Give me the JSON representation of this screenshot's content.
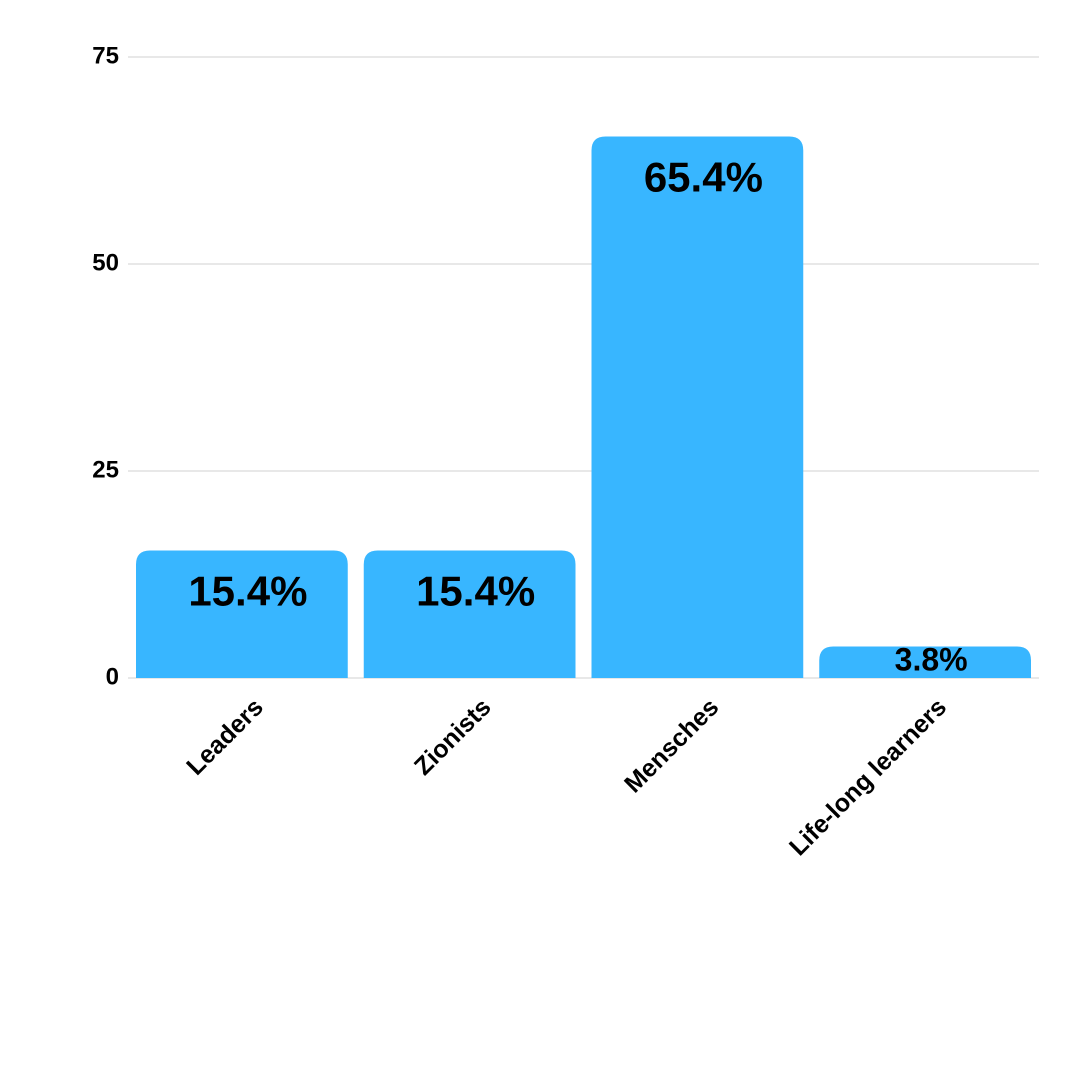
{
  "chart_data": {
    "type": "bar",
    "categories": [
      "Leaders",
      "Zionists",
      "Mensches",
      "Life-long learners"
    ],
    "values": [
      15.4,
      15.4,
      65.4,
      3.8
    ],
    "value_labels": [
      "15.4%",
      "15.4%",
      "65.4%",
      "3.8%"
    ],
    "color": "#38b6ff",
    "ylim": [
      0,
      75
    ],
    "yticks": [
      0,
      25,
      50,
      75
    ],
    "grid": true
  }
}
